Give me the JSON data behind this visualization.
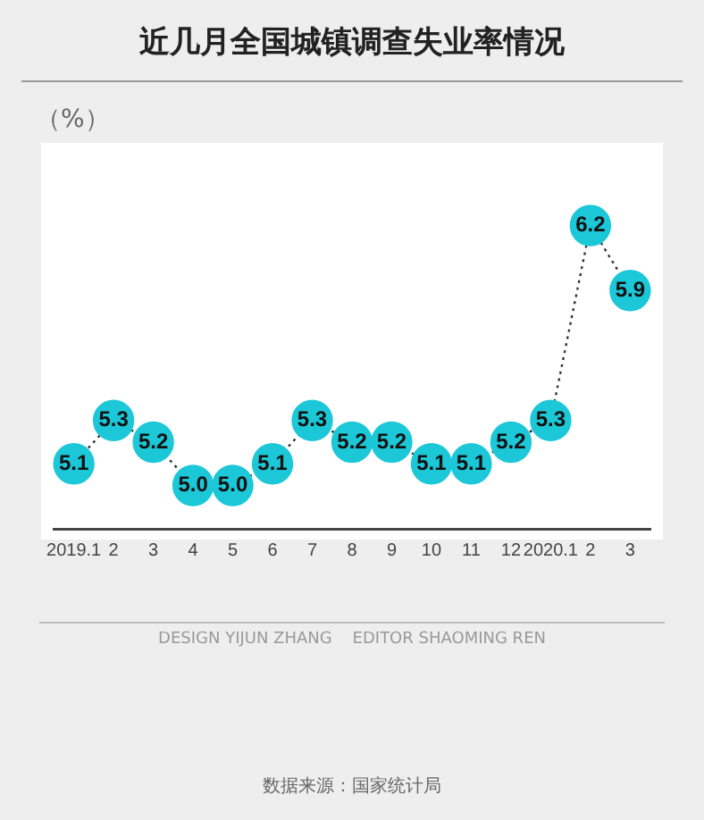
{
  "chart_data": {
    "type": "line",
    "title": "近几月全国城镇调查失业率情况",
    "ylabel": "（%）",
    "categories": [
      "2019.1",
      "2",
      "3",
      "4",
      "5",
      "6",
      "7",
      "8",
      "9",
      "10",
      "11",
      "12",
      "2020.1",
      "2",
      "3"
    ],
    "values": [
      5.1,
      5.3,
      5.2,
      5.0,
      5.0,
      5.1,
      5.3,
      5.2,
      5.2,
      5.1,
      5.1,
      5.2,
      5.3,
      6.2,
      5.9
    ],
    "value_labels": [
      "5.1",
      "5.3",
      "5.2",
      "5.0",
      "5.0",
      "5.1",
      "5.3",
      "5.2",
      "5.2",
      "5.1",
      "5.1",
      "5.2",
      "5.3",
      "6.2",
      "5.9"
    ],
    "color": "#1cc8d8",
    "marker": "circle",
    "line_style": "dotted",
    "grid": false,
    "legend": false,
    "annotations": [
      "DESIGN YIJUN ZHANG    EDITOR SHAOMING REN",
      "数据来源：国家统计局"
    ]
  }
}
